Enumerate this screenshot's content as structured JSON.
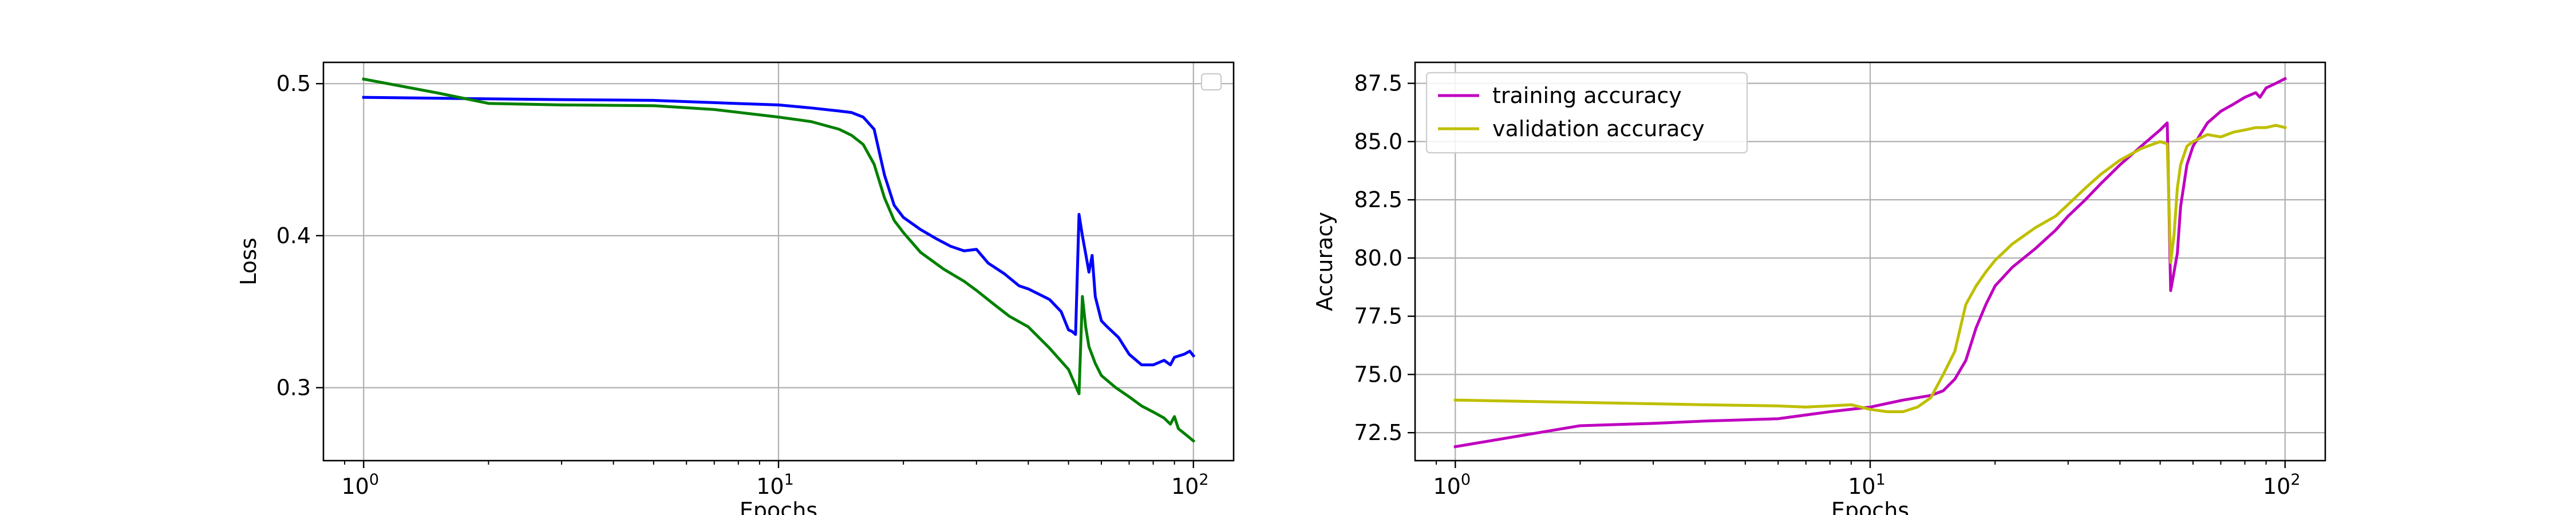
{
  "chart_data": [
    {
      "type": "line",
      "title": "",
      "xlabel": "Epochs",
      "ylabel": "Loss",
      "xscale": "log",
      "xlim": [
        0.8,
        125
      ],
      "ylim": [
        0.252,
        0.514
      ],
      "xticks": [
        1,
        10,
        100
      ],
      "xtick_labels": [
        "10",
        "10",
        "10"
      ],
      "xtick_exponents": [
        "0",
        "1",
        "2"
      ],
      "yticks": [
        0.3,
        0.4,
        0.5
      ],
      "ytick_labels": [
        "0.3",
        "0.4",
        "0.5"
      ],
      "grid": true,
      "legend": "top-right (empty)",
      "series": [
        {
          "color": "#0000ff",
          "points": [
            [
              1,
              0.491
            ],
            [
              2,
              0.49
            ],
            [
              3,
              0.4895
            ],
            [
              5,
              0.489
            ],
            [
              7,
              0.4875
            ],
            [
              10,
              0.486
            ],
            [
              12,
              0.484
            ],
            [
              14,
              0.482
            ],
            [
              15,
              0.481
            ],
            [
              16,
              0.478
            ],
            [
              17,
              0.47
            ],
            [
              18,
              0.44
            ],
            [
              19,
              0.42
            ],
            [
              20,
              0.412
            ],
            [
              22,
              0.404
            ],
            [
              24,
              0.398
            ],
            [
              26,
              0.393
            ],
            [
              28,
              0.39
            ],
            [
              30,
              0.391
            ],
            [
              32,
              0.382
            ],
            [
              35,
              0.375
            ],
            [
              38,
              0.367
            ],
            [
              40,
              0.365
            ],
            [
              45,
              0.358
            ],
            [
              48,
              0.35
            ],
            [
              50,
              0.338
            ],
            [
              51,
              0.337
            ],
            [
              52,
              0.335
            ],
            [
              53,
              0.414
            ],
            [
              54,
              0.4
            ],
            [
              55,
              0.388
            ],
            [
              56,
              0.376
            ],
            [
              57,
              0.387
            ],
            [
              58,
              0.36
            ],
            [
              60,
              0.344
            ],
            [
              62,
              0.34
            ],
            [
              66,
              0.333
            ],
            [
              70,
              0.322
            ],
            [
              75,
              0.315
            ],
            [
              80,
              0.315
            ],
            [
              85,
              0.318
            ],
            [
              88,
              0.315
            ],
            [
              90,
              0.32
            ],
            [
              95,
              0.322
            ],
            [
              98,
              0.324
            ],
            [
              100,
              0.321
            ]
          ]
        },
        {
          "color": "#008000",
          "points": [
            [
              1,
              0.503
            ],
            [
              1.5,
              0.494
            ],
            [
              2,
              0.487
            ],
            [
              3,
              0.486
            ],
            [
              5,
              0.4855
            ],
            [
              7,
              0.483
            ],
            [
              10,
              0.478
            ],
            [
              12,
              0.475
            ],
            [
              14,
              0.47
            ],
            [
              15,
              0.466
            ],
            [
              16,
              0.46
            ],
            [
              17,
              0.447
            ],
            [
              18,
              0.425
            ],
            [
              19,
              0.41
            ],
            [
              20,
              0.402
            ],
            [
              22,
              0.389
            ],
            [
              25,
              0.378
            ],
            [
              28,
              0.37
            ],
            [
              30,
              0.364
            ],
            [
              33,
              0.355
            ],
            [
              36,
              0.347
            ],
            [
              40,
              0.34
            ],
            [
              45,
              0.326
            ],
            [
              50,
              0.312
            ],
            [
              53,
              0.296
            ],
            [
              54,
              0.36
            ],
            [
              55,
              0.34
            ],
            [
              56,
              0.327
            ],
            [
              58,
              0.316
            ],
            [
              60,
              0.308
            ],
            [
              65,
              0.3
            ],
            [
              70,
              0.294
            ],
            [
              75,
              0.288
            ],
            [
              80,
              0.284
            ],
            [
              85,
              0.28
            ],
            [
              88,
              0.276
            ],
            [
              90,
              0.281
            ],
            [
              92,
              0.273
            ],
            [
              95,
              0.27
            ],
            [
              100,
              0.265
            ]
          ]
        }
      ]
    },
    {
      "type": "line",
      "title": "",
      "xlabel": "Epochs",
      "ylabel": "Accuracy",
      "xscale": "log",
      "xlim": [
        0.8,
        125
      ],
      "ylim": [
        71.3,
        88.4
      ],
      "xticks": [
        1,
        10,
        100
      ],
      "xtick_labels": [
        "10",
        "10",
        "10"
      ],
      "xtick_exponents": [
        "0",
        "1",
        "2"
      ],
      "yticks": [
        72.5,
        75.0,
        77.5,
        80.0,
        82.5,
        85.0,
        87.5
      ],
      "ytick_labels": [
        "72.5",
        "75.0",
        "77.5",
        "80.0",
        "82.5",
        "85.0",
        "87.5"
      ],
      "grid": true,
      "legend": "top-left",
      "series": [
        {
          "name": "training accuracy",
          "color": "#bf00bf",
          "points": [
            [
              1,
              71.9
            ],
            [
              2,
              72.8
            ],
            [
              3,
              72.9
            ],
            [
              4,
              73.0
            ],
            [
              6,
              73.1
            ],
            [
              8,
              73.4
            ],
            [
              10,
              73.6
            ],
            [
              12,
              73.9
            ],
            [
              14,
              74.1
            ],
            [
              15,
              74.3
            ],
            [
              16,
              74.8
            ],
            [
              17,
              75.6
            ],
            [
              18,
              77.0
            ],
            [
              19,
              78.0
            ],
            [
              20,
              78.8
            ],
            [
              22,
              79.6
            ],
            [
              25,
              80.4
            ],
            [
              28,
              81.2
            ],
            [
              30,
              81.8
            ],
            [
              33,
              82.5
            ],
            [
              36,
              83.2
            ],
            [
              40,
              84.0
            ],
            [
              45,
              84.8
            ],
            [
              50,
              85.5
            ],
            [
              52,
              85.8
            ],
            [
              53,
              78.6
            ],
            [
              54,
              79.4
            ],
            [
              55,
              80.2
            ],
            [
              56,
              82.2
            ],
            [
              58,
              84.0
            ],
            [
              60,
              84.8
            ],
            [
              65,
              85.8
            ],
            [
              70,
              86.3
            ],
            [
              75,
              86.6
            ],
            [
              80,
              86.9
            ],
            [
              85,
              87.1
            ],
            [
              87,
              86.9
            ],
            [
              90,
              87.3
            ],
            [
              95,
              87.5
            ],
            [
              100,
              87.7
            ]
          ]
        },
        {
          "name": "validation accuracy",
          "color": "#bfbf00",
          "points": [
            [
              1,
              73.9
            ],
            [
              2,
              73.8
            ],
            [
              4,
              73.7
            ],
            [
              6,
              73.65
            ],
            [
              7,
              73.6
            ],
            [
              9,
              73.7
            ],
            [
              10,
              73.5
            ],
            [
              11,
              73.4
            ],
            [
              12,
              73.4
            ],
            [
              13,
              73.6
            ],
            [
              14,
              74.0
            ],
            [
              15,
              75.0
            ],
            [
              16,
              76.0
            ],
            [
              17,
              78.0
            ],
            [
              18,
              78.8
            ],
            [
              19,
              79.4
            ],
            [
              20,
              79.9
            ],
            [
              22,
              80.6
            ],
            [
              25,
              81.3
            ],
            [
              28,
              81.8
            ],
            [
              30,
              82.3
            ],
            [
              33,
              83.0
            ],
            [
              36,
              83.6
            ],
            [
              40,
              84.2
            ],
            [
              45,
              84.7
            ],
            [
              50,
              85.0
            ],
            [
              52,
              84.9
            ],
            [
              53,
              79.8
            ],
            [
              54,
              81.0
            ],
            [
              55,
              83.0
            ],
            [
              56,
              84.0
            ],
            [
              58,
              84.8
            ],
            [
              60,
              85.0
            ],
            [
              65,
              85.3
            ],
            [
              70,
              85.2
            ],
            [
              75,
              85.4
            ],
            [
              80,
              85.5
            ],
            [
              85,
              85.6
            ],
            [
              90,
              85.6
            ],
            [
              95,
              85.7
            ],
            [
              100,
              85.6
            ]
          ]
        }
      ]
    }
  ]
}
